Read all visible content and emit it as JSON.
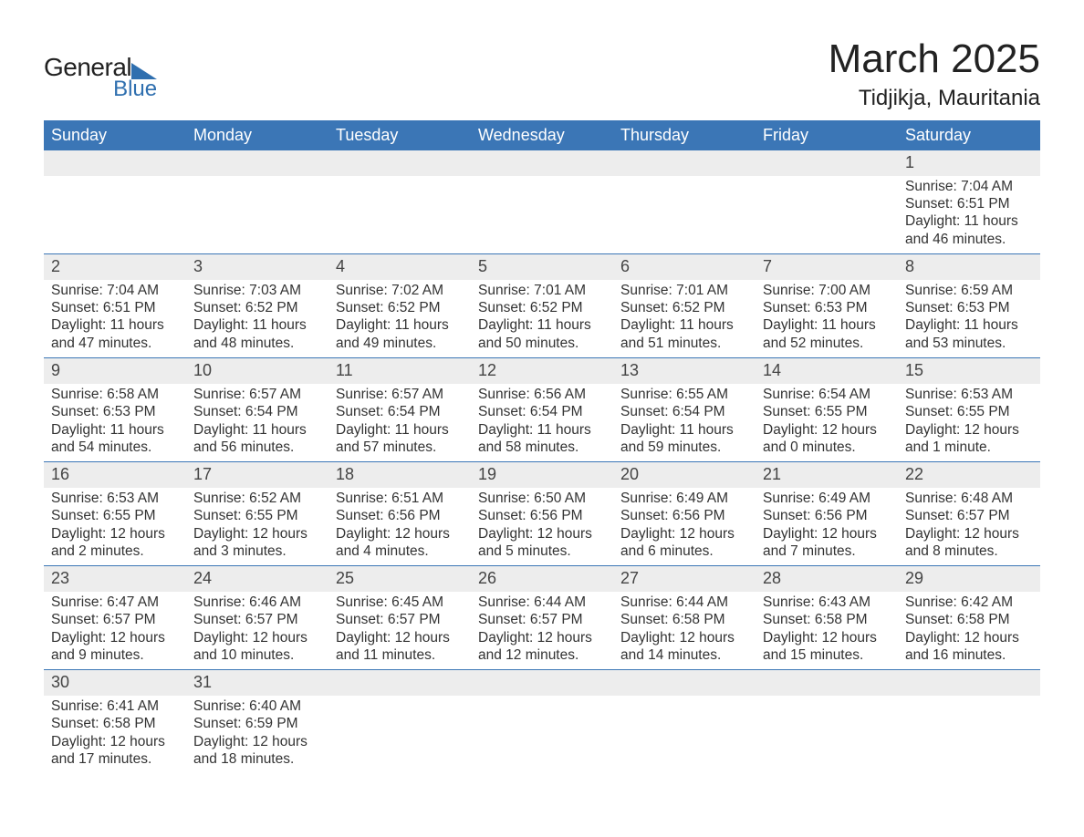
{
  "brand": {
    "word1": "General",
    "word2": "Blue",
    "accent_color": "#2f6faf"
  },
  "title": "March 2025",
  "location": "Tidjikja, Mauritania",
  "colors": {
    "header_bg": "#3b76b6",
    "header_fg": "#ffffff",
    "daynum_bg": "#ededed",
    "row_border": "#3b76b6",
    "text": "#333333"
  },
  "weekdays": [
    "Sunday",
    "Monday",
    "Tuesday",
    "Wednesday",
    "Thursday",
    "Friday",
    "Saturday"
  ],
  "labels": {
    "sunrise": "Sunrise:",
    "sunset": "Sunset:",
    "daylight": "Daylight:"
  },
  "weeks": [
    [
      null,
      null,
      null,
      null,
      null,
      null,
      {
        "n": "1",
        "sunrise": "7:04 AM",
        "sunset": "6:51 PM",
        "daylight": "11 hours and 46 minutes."
      }
    ],
    [
      {
        "n": "2",
        "sunrise": "7:04 AM",
        "sunset": "6:51 PM",
        "daylight": "11 hours and 47 minutes."
      },
      {
        "n": "3",
        "sunrise": "7:03 AM",
        "sunset": "6:52 PM",
        "daylight": "11 hours and 48 minutes."
      },
      {
        "n": "4",
        "sunrise": "7:02 AM",
        "sunset": "6:52 PM",
        "daylight": "11 hours and 49 minutes."
      },
      {
        "n": "5",
        "sunrise": "7:01 AM",
        "sunset": "6:52 PM",
        "daylight": "11 hours and 50 minutes."
      },
      {
        "n": "6",
        "sunrise": "7:01 AM",
        "sunset": "6:52 PM",
        "daylight": "11 hours and 51 minutes."
      },
      {
        "n": "7",
        "sunrise": "7:00 AM",
        "sunset": "6:53 PM",
        "daylight": "11 hours and 52 minutes."
      },
      {
        "n": "8",
        "sunrise": "6:59 AM",
        "sunset": "6:53 PM",
        "daylight": "11 hours and 53 minutes."
      }
    ],
    [
      {
        "n": "9",
        "sunrise": "6:58 AM",
        "sunset": "6:53 PM",
        "daylight": "11 hours and 54 minutes."
      },
      {
        "n": "10",
        "sunrise": "6:57 AM",
        "sunset": "6:54 PM",
        "daylight": "11 hours and 56 minutes."
      },
      {
        "n": "11",
        "sunrise": "6:57 AM",
        "sunset": "6:54 PM",
        "daylight": "11 hours and 57 minutes."
      },
      {
        "n": "12",
        "sunrise": "6:56 AM",
        "sunset": "6:54 PM",
        "daylight": "11 hours and 58 minutes."
      },
      {
        "n": "13",
        "sunrise": "6:55 AM",
        "sunset": "6:54 PM",
        "daylight": "11 hours and 59 minutes."
      },
      {
        "n": "14",
        "sunrise": "6:54 AM",
        "sunset": "6:55 PM",
        "daylight": "12 hours and 0 minutes."
      },
      {
        "n": "15",
        "sunrise": "6:53 AM",
        "sunset": "6:55 PM",
        "daylight": "12 hours and 1 minute."
      }
    ],
    [
      {
        "n": "16",
        "sunrise": "6:53 AM",
        "sunset": "6:55 PM",
        "daylight": "12 hours and 2 minutes."
      },
      {
        "n": "17",
        "sunrise": "6:52 AM",
        "sunset": "6:55 PM",
        "daylight": "12 hours and 3 minutes."
      },
      {
        "n": "18",
        "sunrise": "6:51 AM",
        "sunset": "6:56 PM",
        "daylight": "12 hours and 4 minutes."
      },
      {
        "n": "19",
        "sunrise": "6:50 AM",
        "sunset": "6:56 PM",
        "daylight": "12 hours and 5 minutes."
      },
      {
        "n": "20",
        "sunrise": "6:49 AM",
        "sunset": "6:56 PM",
        "daylight": "12 hours and 6 minutes."
      },
      {
        "n": "21",
        "sunrise": "6:49 AM",
        "sunset": "6:56 PM",
        "daylight": "12 hours and 7 minutes."
      },
      {
        "n": "22",
        "sunrise": "6:48 AM",
        "sunset": "6:57 PM",
        "daylight": "12 hours and 8 minutes."
      }
    ],
    [
      {
        "n": "23",
        "sunrise": "6:47 AM",
        "sunset": "6:57 PM",
        "daylight": "12 hours and 9 minutes."
      },
      {
        "n": "24",
        "sunrise": "6:46 AM",
        "sunset": "6:57 PM",
        "daylight": "12 hours and 10 minutes."
      },
      {
        "n": "25",
        "sunrise": "6:45 AM",
        "sunset": "6:57 PM",
        "daylight": "12 hours and 11 minutes."
      },
      {
        "n": "26",
        "sunrise": "6:44 AM",
        "sunset": "6:57 PM",
        "daylight": "12 hours and 12 minutes."
      },
      {
        "n": "27",
        "sunrise": "6:44 AM",
        "sunset": "6:58 PM",
        "daylight": "12 hours and 14 minutes."
      },
      {
        "n": "28",
        "sunrise": "6:43 AM",
        "sunset": "6:58 PM",
        "daylight": "12 hours and 15 minutes."
      },
      {
        "n": "29",
        "sunrise": "6:42 AM",
        "sunset": "6:58 PM",
        "daylight": "12 hours and 16 minutes."
      }
    ],
    [
      {
        "n": "30",
        "sunrise": "6:41 AM",
        "sunset": "6:58 PM",
        "daylight": "12 hours and 17 minutes."
      },
      {
        "n": "31",
        "sunrise": "6:40 AM",
        "sunset": "6:59 PM",
        "daylight": "12 hours and 18 minutes."
      },
      null,
      null,
      null,
      null,
      null
    ]
  ]
}
